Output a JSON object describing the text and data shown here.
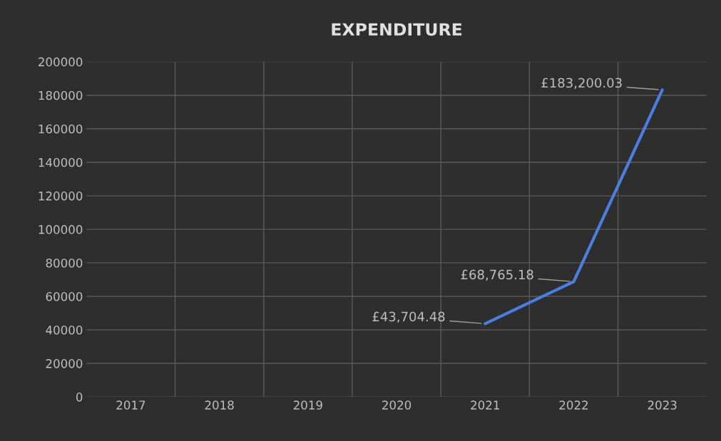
{
  "chart_data": {
    "type": "line",
    "title": "EXPENDITURE",
    "categories": [
      "2017",
      "2018",
      "2019",
      "2020",
      "2021",
      "2022",
      "2023"
    ],
    "series": [
      {
        "color": "#4a7fe0",
        "values": [
          null,
          null,
          null,
          null,
          43704.48,
          68765.18,
          183200.03
        ],
        "value_labels": [
          null,
          null,
          null,
          null,
          "£43,704.48",
          "£68,765.18",
          "£183,200.03"
        ]
      }
    ],
    "ylim": [
      0,
      200000
    ],
    "yticks": [
      0,
      20000,
      40000,
      60000,
      80000,
      100000,
      120000,
      140000,
      160000,
      180000,
      200000
    ],
    "grid": true
  }
}
